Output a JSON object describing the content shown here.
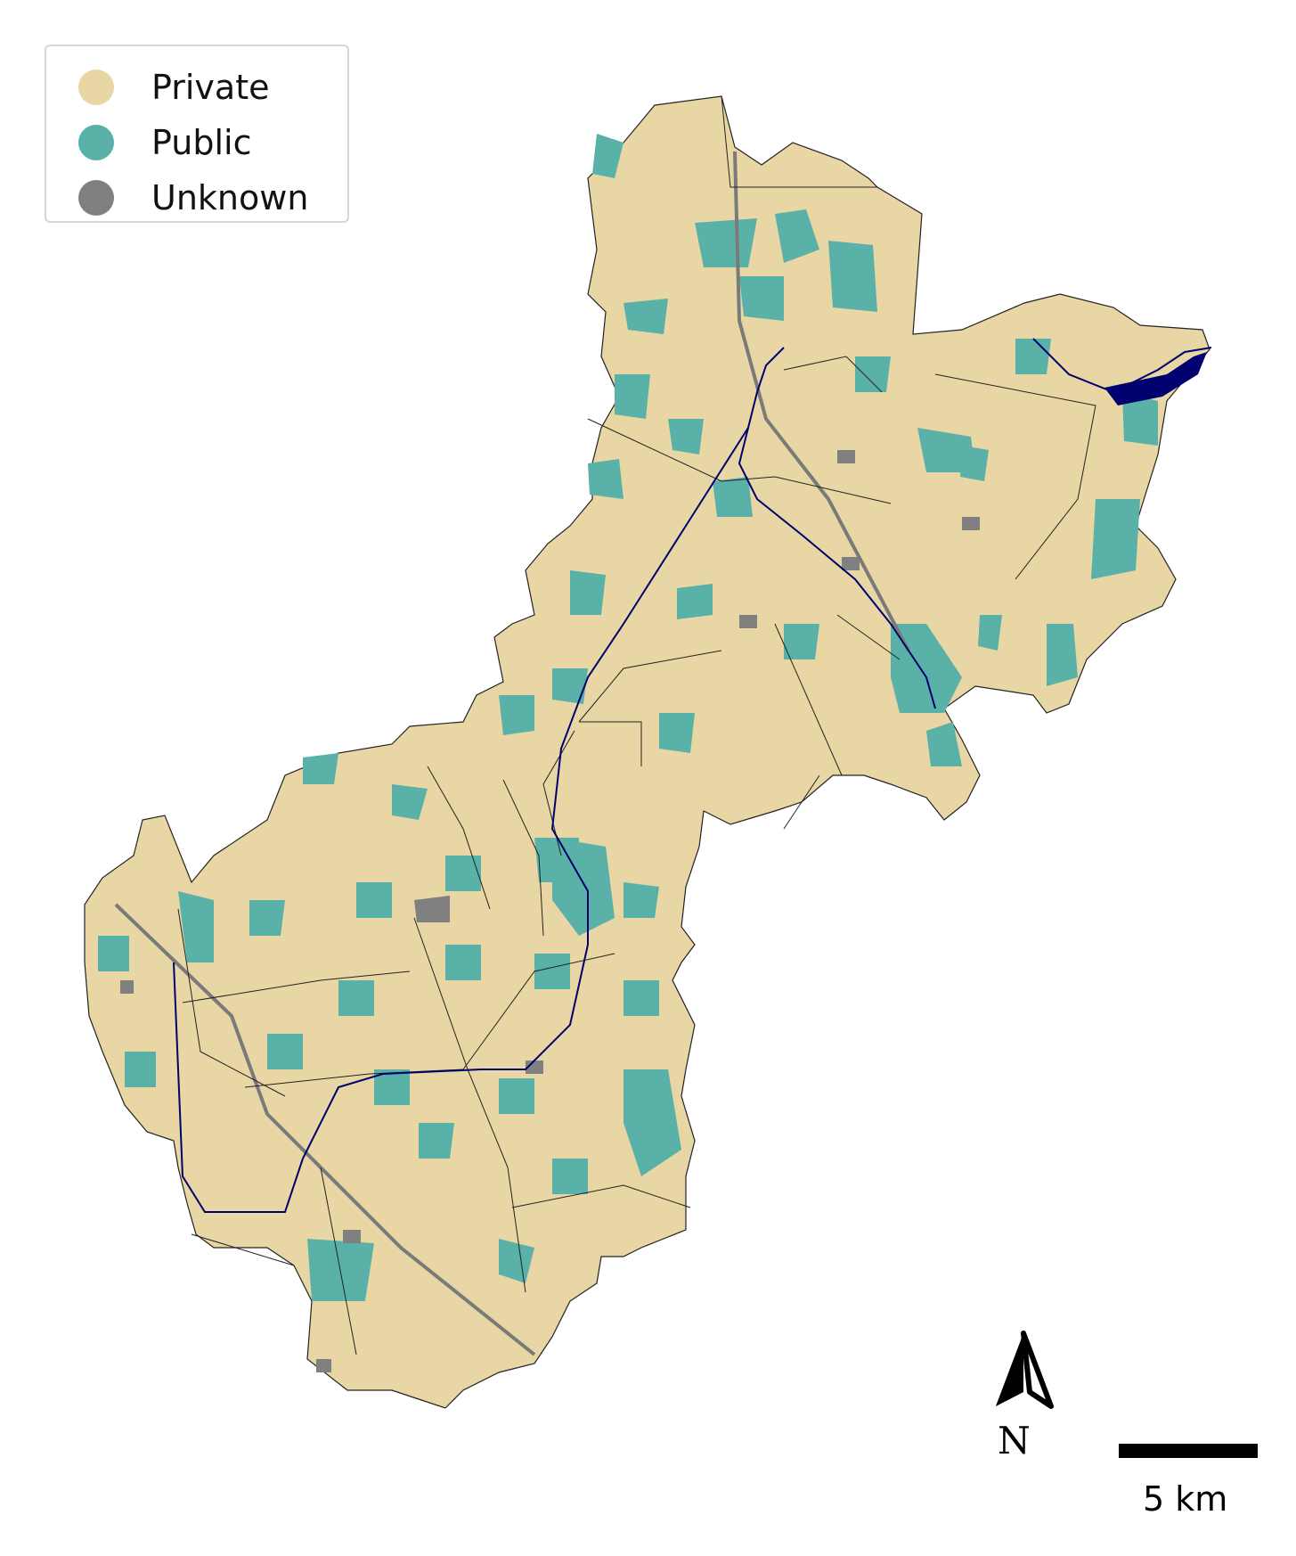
{
  "legend": {
    "items": [
      {
        "label": "Private",
        "color": "#e9d6a5"
      },
      {
        "label": "Public",
        "color": "#5ab1a8"
      },
      {
        "label": "Unknown",
        "color": "#808080"
      }
    ]
  },
  "north_arrow": {
    "label": "N"
  },
  "scale_bar": {
    "label": "5 km"
  },
  "colors": {
    "private": "#e9d6a5",
    "public": "#5ab1a8",
    "unknown": "#808080",
    "river": "#00006e",
    "boundary": "#222222",
    "road": "#7a7a7a"
  }
}
